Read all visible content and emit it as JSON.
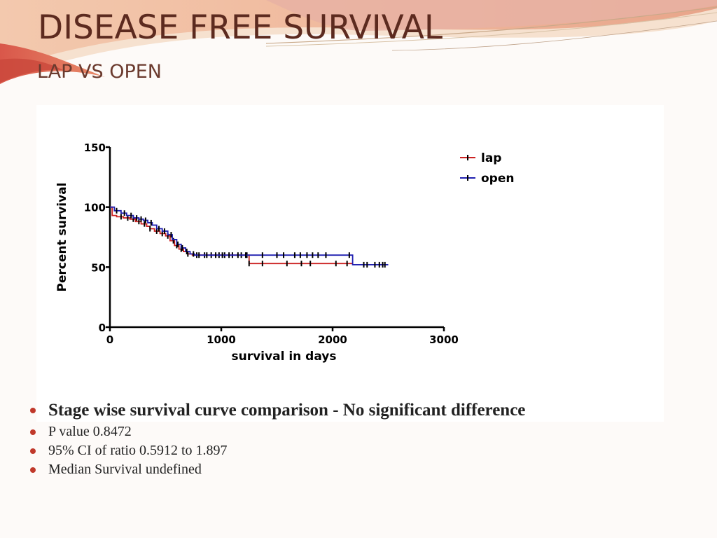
{
  "slide": {
    "title": "DISEASE FREE SURVIVAL",
    "subtitle": "LAP VS OPEN"
  },
  "colors": {
    "title": "#5c2a1f",
    "lap": "#cc2222",
    "open": "#1f1fb0",
    "bullet_dot": "#c0392b"
  },
  "chart_data": {
    "type": "line",
    "subtype": "kaplan-meier step",
    "title": "",
    "xlabel": "survival in days",
    "ylabel": "Percent survival",
    "xlim": [
      0,
      3000
    ],
    "ylim": [
      0,
      150
    ],
    "xticks": [
      0,
      1000,
      2000,
      3000
    ],
    "yticks": [
      0,
      50,
      100,
      150
    ],
    "legend_position": "top-right",
    "series": [
      {
        "name": "lap",
        "color": "#cc2222",
        "x": [
          0,
          20,
          60,
          120,
          180,
          230,
          280,
          330,
          360,
          400,
          450,
          500,
          540,
          580,
          620,
          660,
          700,
          740,
          1250,
          2180
        ],
        "y": [
          100,
          93,
          92,
          91,
          90,
          88,
          86,
          84,
          82,
          80,
          78,
          76,
          72,
          68,
          65,
          63,
          61,
          60,
          53,
          53
        ],
        "censored_x": [
          100,
          160,
          210,
          260,
          310,
          360,
          420,
          470,
          520,
          570,
          600,
          640,
          700,
          780,
          850,
          910,
          980,
          1030,
          1100,
          1180,
          1230,
          1250,
          1370,
          1590,
          1720,
          1800,
          2030,
          2130
        ]
      },
      {
        "name": "open",
        "color": "#1f1fb0",
        "x": [
          0,
          40,
          100,
          150,
          210,
          260,
          300,
          340,
          380,
          420,
          470,
          520,
          560,
          600,
          640,
          680,
          720,
          760,
          2180,
          2500
        ],
        "y": [
          100,
          97,
          95,
          93,
          91,
          90,
          89,
          87,
          85,
          82,
          80,
          77,
          73,
          69,
          66,
          63,
          61,
          60,
          52,
          52
        ],
        "censored_x": [
          60,
          130,
          190,
          240,
          280,
          320,
          370,
          440,
          490,
          550,
          610,
          650,
          690,
          750,
          800,
          870,
          950,
          1010,
          1070,
          1150,
          1220,
          1370,
          1500,
          1560,
          1660,
          1710,
          1770,
          1820,
          1870,
          1940,
          2150,
          2280,
          2310,
          2380,
          2420,
          2450,
          2470
        ]
      }
    ]
  },
  "bullets": [
    {
      "text": "Stage wise survival curve comparison - No significant difference",
      "style": "main"
    },
    {
      "text": "P value   0.8472",
      "style": "small"
    },
    {
      "text": "95% CI of ratio 0.5912 to 1.897",
      "style": "small"
    },
    {
      "text": "Median Survival  undefined",
      "style": "small"
    }
  ]
}
